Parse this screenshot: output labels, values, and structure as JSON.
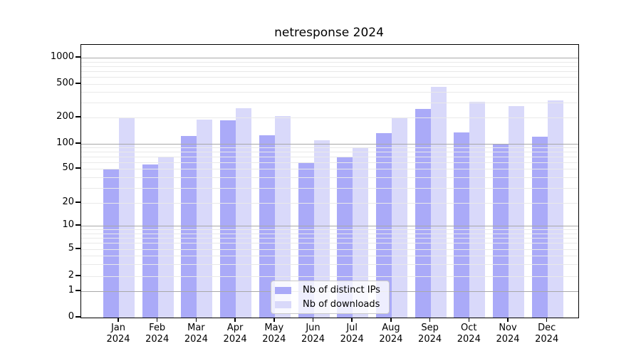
{
  "title": "netresponse 2024",
  "chart_data": {
    "type": "bar",
    "title": "netresponse 2024",
    "categories": [
      "Jan 2024",
      "Feb 2024",
      "Mar 2024",
      "Apr 2024",
      "May 2024",
      "Jun 2024",
      "Jul 2024",
      "Aug 2024",
      "Sep 2024",
      "Oct 2024",
      "Nov 2024",
      "Dec 2024"
    ],
    "series": [
      {
        "name": "Nb of distinct IPs",
        "color": "#aaaaf8",
        "values": [
          49,
          56,
          123,
          186,
          125,
          60,
          68,
          133,
          255,
          134,
          98,
          120
        ]
      },
      {
        "name": "Nb of downloads",
        "color": "#d9d9fa",
        "values": [
          199,
          70,
          190,
          257,
          206,
          110,
          91,
          196,
          460,
          306,
          274,
          320
        ]
      }
    ],
    "xlabel": "",
    "ylabel": "",
    "yscale": "symlog",
    "yticks": [
      1000,
      500,
      200,
      100,
      50,
      20,
      10,
      5,
      2,
      1,
      0
    ],
    "ylim": [
      0,
      1400
    ],
    "grid": true,
    "legend_position": "lower center"
  },
  "colors": {
    "bar_dark": "#aaaaf8",
    "bar_light": "#d9d9fa",
    "grid_major": "#a8a8a8",
    "grid_minor": "#e9e9e9",
    "axis": "#000000",
    "legend_border": "#c8c8c8"
  }
}
